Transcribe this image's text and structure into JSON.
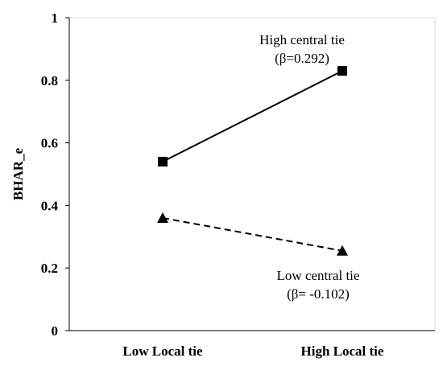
{
  "chart_data": {
    "type": "line",
    "categories": [
      "Low Local tie",
      "High Local tie"
    ],
    "ylabel": "BHAR_e",
    "xlabel": "",
    "ylim": [
      0,
      1
    ],
    "yticks": [
      "0",
      "0.2",
      "0.4",
      "0.6",
      "0.8",
      "1"
    ],
    "grid": false,
    "series": [
      {
        "annotation": [
          "High central tie",
          "(β=0.292)"
        ],
        "values": [
          0.54,
          0.83
        ],
        "marker": "square",
        "line_style": "solid",
        "color": "#000000"
      },
      {
        "annotation": [
          "Low central tie",
          "(β= -0.102)"
        ],
        "values": [
          0.36,
          0.255
        ],
        "marker": "triangle",
        "line_style": "dashed",
        "color": "#000000"
      }
    ]
  }
}
